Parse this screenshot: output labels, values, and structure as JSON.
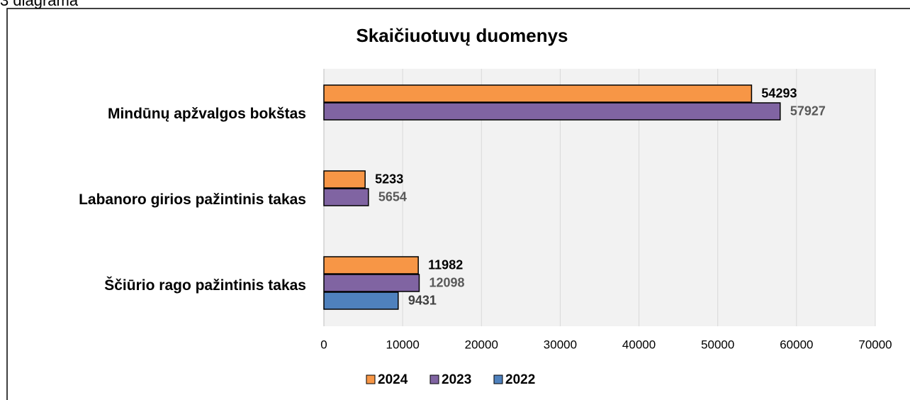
{
  "caption": "3 diagrama",
  "chart_data": {
    "type": "barh",
    "title": "Skaičiuotuvų duomenys",
    "categories": [
      "Mindūnų apžvalgos bokštas",
      "Labanoro girios pažintinis takas",
      "Ščiūrio rago pažintinis takas"
    ],
    "series": [
      {
        "name": "2024",
        "color": "#f79646",
        "label_color": "#000000",
        "values": [
          54293,
          5233,
          11982
        ]
      },
      {
        "name": "2023",
        "color": "#8064a2",
        "label_color": "#595959",
        "values": [
          57927,
          5654,
          12098
        ]
      },
      {
        "name": "2022",
        "color": "#4f81bd",
        "label_color": "#404040",
        "values": [
          null,
          null,
          9431
        ]
      }
    ],
    "xlim": [
      0,
      70000
    ],
    "xticks": [
      0,
      10000,
      20000,
      30000,
      40000,
      50000,
      60000,
      70000
    ],
    "grid": true,
    "legend": "bottom"
  }
}
